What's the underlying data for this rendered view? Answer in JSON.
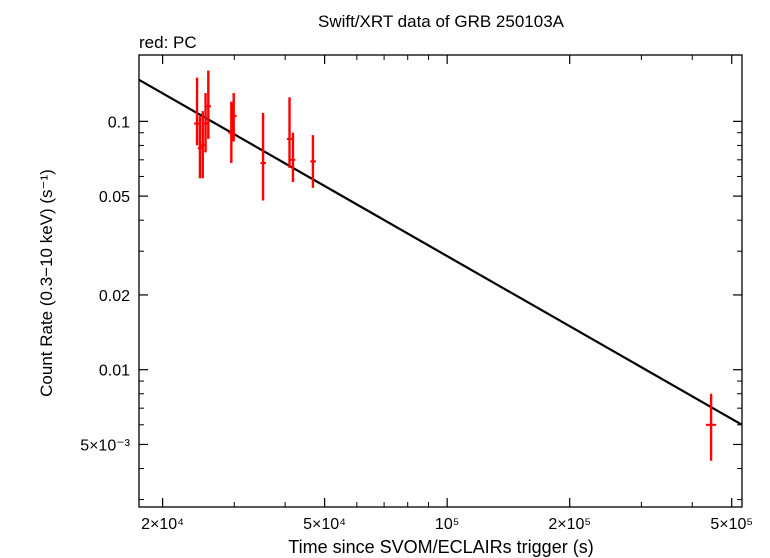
{
  "chart_data": {
    "type": "scatter",
    "title": "Swift/XRT data of GRB 250103A",
    "subtitle": "red: PC",
    "xlabel": "Time since SVOM/ECLAIRs trigger (s)",
    "ylabel": "Count Rate (0.3−10 keV) (s⁻¹)",
    "x_scale": "log",
    "y_scale": "log",
    "xlim": [
      17500,
      530000
    ],
    "ylim": [
      0.0028,
      0.185
    ],
    "xticks": [
      {
        "value": 20000,
        "label": "2×10⁴"
      },
      {
        "value": 50000,
        "label": "5×10⁴"
      },
      {
        "value": 100000,
        "label": "10⁵"
      },
      {
        "value": 200000,
        "label": "2×10⁵"
      },
      {
        "value": 500000,
        "label": "5×10⁵"
      }
    ],
    "yticks": [
      {
        "value": 0.005,
        "label": "5×10⁻³"
      },
      {
        "value": 0.01,
        "label": "0.01"
      },
      {
        "value": 0.02,
        "label": "0.02"
      },
      {
        "value": 0.05,
        "label": "0.05"
      },
      {
        "value": 0.1,
        "label": "0.1"
      }
    ],
    "grid": false,
    "series": [
      {
        "color": "#ff0000",
        "points": [
          {
            "x": 24300,
            "y": 0.098,
            "xerr": [
              23900,
              24700
            ],
            "yerr": [
              0.08,
              0.15
            ]
          },
          {
            "x": 24700,
            "y": 0.078,
            "xerr": [
              24400,
              25000
            ],
            "yerr": [
              0.059,
              0.105
            ]
          },
          {
            "x": 25100,
            "y": 0.08,
            "xerr": [
              24800,
              25400
            ],
            "yerr": [
              0.059,
              0.11
            ]
          },
          {
            "x": 25500,
            "y": 0.098,
            "xerr": [
              25200,
              25800
            ],
            "yerr": [
              0.075,
              0.13
            ]
          },
          {
            "x": 25900,
            "y": 0.115,
            "xerr": [
              25600,
              26300
            ],
            "yerr": [
              0.085,
              0.16
            ]
          },
          {
            "x": 29500,
            "y": 0.09,
            "xerr": [
              29000,
              30100
            ],
            "yerr": [
              0.068,
              0.12
            ]
          },
          {
            "x": 29900,
            "y": 0.105,
            "xerr": [
              29400,
              30400
            ],
            "yerr": [
              0.083,
              0.13
            ]
          },
          {
            "x": 35300,
            "y": 0.068,
            "xerr": [
              34800,
              35900
            ],
            "yerr": [
              0.048,
              0.108
            ]
          },
          {
            "x": 41000,
            "y": 0.085,
            "xerr": [
              40400,
              41600
            ],
            "yerr": [
              0.065,
              0.125
            ]
          },
          {
            "x": 41800,
            "y": 0.07,
            "xerr": [
              41200,
              42400
            ],
            "yerr": [
              0.057,
              0.09
            ]
          },
          {
            "x": 46800,
            "y": 0.069,
            "xerr": [
              46100,
              47600
            ],
            "yerr": [
              0.054,
              0.088
            ]
          },
          {
            "x": 445000,
            "y": 0.006,
            "xerr": [
              432000,
              458000
            ],
            "yerr": [
              0.0043,
              0.008
            ]
          }
        ]
      }
    ],
    "model_line": {
      "color": "#000000",
      "points": [
        {
          "x": 17500,
          "y": 0.147
        },
        {
          "x": 530000,
          "y": 0.006
        }
      ]
    }
  }
}
